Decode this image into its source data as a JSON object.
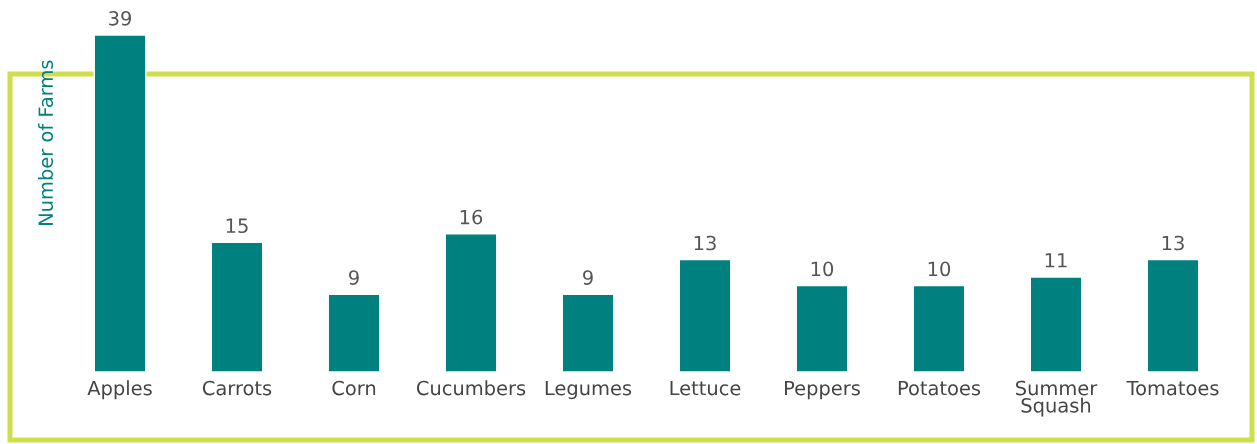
{
  "chart_data": {
    "type": "bar",
    "ylabel": "Number of Farms",
    "categories": [
      "Apples",
      "Carrots",
      "Corn",
      "Cucumbers",
      "Legumes",
      "Lettuce",
      "Peppers",
      "Potatoes",
      "Summer\nSquash",
      "Tomatoes"
    ],
    "values": [
      39,
      15,
      9,
      16,
      9,
      13,
      10,
      10,
      11,
      13
    ],
    "color": "#00807f",
    "data_labels": true,
    "grid": false,
    "legend": false
  }
}
